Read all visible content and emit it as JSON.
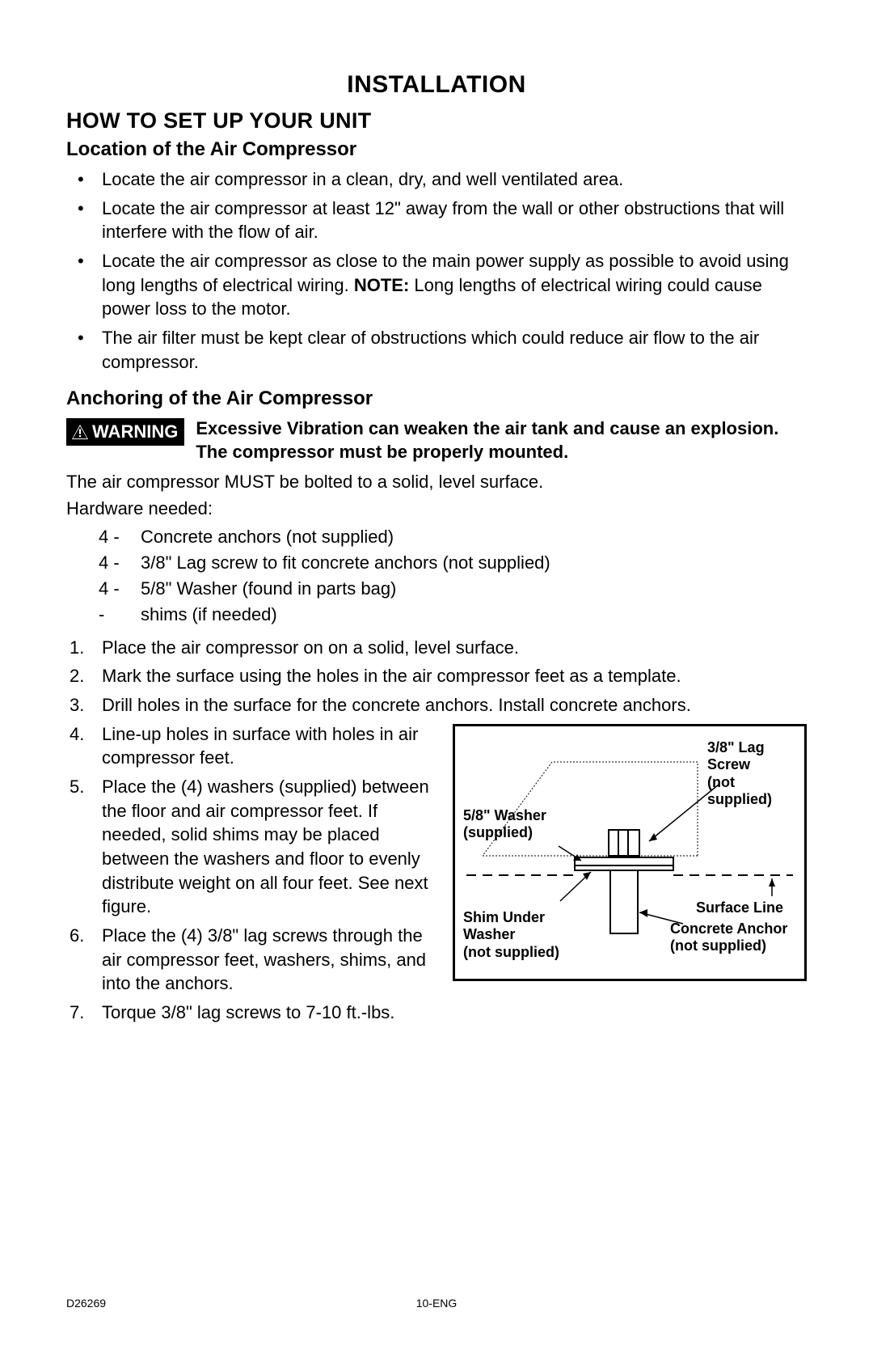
{
  "title": "INSTALLATION",
  "section_heading": "HOW TO SET UP YOUR UNIT",
  "subheading_location": "Location of the Air Compressor",
  "location_bullets": [
    "Locate the air compressor in a clean, dry, and well ventilated area.",
    "Locate the air compressor at least 12\" away from the wall or other obstructions that will interfere with the flow of air.",
    "Locate the air compressor as close to the main power supply as possible to avoid using long lengths of electrical wiring. <NOTE> Long lengths of electrical wiring could cause power loss to the motor.",
    "The air filter must be kept clear of obstructions which could reduce air flow to the air compressor."
  ],
  "note_label": "NOTE:",
  "subheading_anchoring": "Anchoring of the Air Compressor",
  "warning_label": "WARNING",
  "warning_text": "Excessive Vibration can weaken the air tank and cause an explosion. The compressor must be properly mounted.",
  "bolted_text": "The air compressor MUST be bolted to a solid, level surface.",
  "hardware_label": "Hardware needed:",
  "hardware_items": [
    {
      "qty": "4  -",
      "desc": "Concrete anchors (not supplied)"
    },
    {
      "qty": "4  -",
      "desc": "3/8\" Lag screw to fit concrete anchors (not supplied)"
    },
    {
      "qty": "4  -",
      "desc": "5/8\" Washer (found in parts bag)"
    },
    {
      "qty": "    -",
      "desc": "shims (if needed)"
    }
  ],
  "steps_1_3": [
    "Place the air compressor on on a solid, level surface.",
    "Mark the surface using the holes in the air compressor feet as a template.",
    "Drill holes in the surface for the concrete anchors. Install concrete anchors."
  ],
  "steps_4_6": [
    "Line-up holes in surface with holes in air compressor feet.",
    "Place the (4) washers (supplied) between the floor and air compressor feet. If needed, solid shims may be placed between the washers and floor to  evenly distribute weight on all four feet. See next figure.",
    "Place the (4) 3/8\" lag screws through the air compressor feet, washers, shims, and into the anchors."
  ],
  "step_7": "Torque 3/8\" lag screws to 7-10 ft.-lbs.",
  "figure": {
    "label_lag_screw": "3/8\" Lag\nScrew\n(not\nsupplied)",
    "label_washer": "5/8\" Washer\n(supplied)",
    "label_shim": "Shim Under\nWasher\n(not supplied)",
    "label_surface": "Surface Line",
    "label_anchor": "Concrete Anchor\n(not supplied)",
    "stroke": "#000000",
    "bg": "#ffffff"
  },
  "footer": {
    "left": "D26269",
    "center": "10-ENG"
  }
}
